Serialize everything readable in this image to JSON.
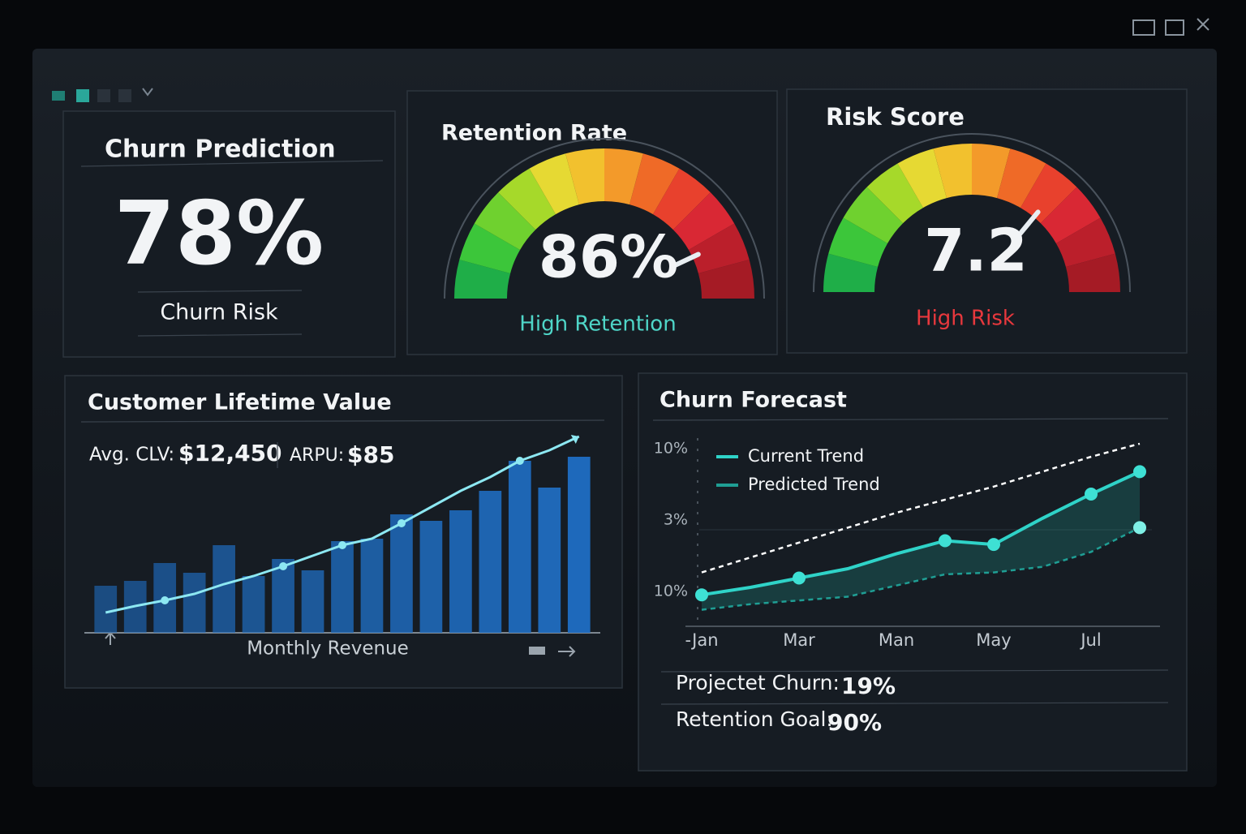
{
  "churn_card": {
    "title": "Churn Prediction",
    "value": "78%",
    "label": "Churn Risk"
  },
  "chart_data": [
    {
      "type": "gauge",
      "title": "Retention Rate",
      "value": 86,
      "value_label": "86%",
      "status": "High Retention",
      "status_color": "#4fd6c8",
      "ylim": [
        0,
        100
      ]
    },
    {
      "type": "gauge",
      "title": "Risk Score",
      "value": 7.2,
      "status": "High Risk",
      "status_color": "#e8383d",
      "ylim": [
        0,
        10
      ]
    },
    {
      "type": "bar",
      "title": "Customer Lifetime Value",
      "stats": [
        {
          "label": "Avg. CLV:",
          "value": "$12,450"
        },
        {
          "label": "ARPU:",
          "value": "$85"
        }
      ],
      "xlabel": "Monthly Revenue",
      "categories": [
        null,
        null,
        null,
        null,
        null,
        null,
        null,
        null,
        null,
        null,
        null,
        null,
        null,
        null,
        null,
        null,
        null
      ],
      "series": [
        {
          "type": "bar",
          "color": "#1f6cbf",
          "values": [
            58,
            64,
            86,
            74,
            108,
            70,
            91,
            77,
            113,
            116,
            146,
            138,
            151,
            175,
            212,
            179,
            217
          ]
        },
        {
          "type": "line",
          "color": "#8de8f2",
          "values": [
            25,
            33,
            40,
            48,
            60,
            70,
            82,
            95,
            108,
            116,
            135,
            155,
            175,
            192,
            212,
            225,
            242
          ]
        }
      ],
      "ylim": [
        0,
        250
      ]
    },
    {
      "type": "line",
      "title": "Churn Forecast",
      "categories": [
        "-Jan",
        null,
        "Mar",
        null,
        "Man",
        null,
        "May",
        null,
        "Jul",
        null
      ],
      "y_axis_labels": [
        "10%",
        "3%",
        "10%"
      ],
      "series": [
        {
          "name": "Current Trend",
          "color": "#2fd3c8",
          "values": [
            16,
            20,
            25,
            30,
            38,
            45,
            43,
            57,
            70,
            82
          ]
        },
        {
          "name": "Predicted Trend",
          "color": "#1f9e94",
          "dashed": true,
          "values": [
            8,
            11,
            13,
            15,
            21,
            27,
            28,
            31,
            39,
            52
          ]
        },
        {
          "color": "#ffffff",
          "dashed": true,
          "values": [
            28,
            36,
            44,
            52,
            60,
            67,
            74,
            82,
            90,
            97
          ]
        }
      ],
      "ylim": [
        0,
        100
      ],
      "summary": [
        {
          "label": "Projectet Churn:",
          "value": "19%"
        },
        {
          "label": "Retention Goal:",
          "value": "90%"
        }
      ]
    }
  ]
}
